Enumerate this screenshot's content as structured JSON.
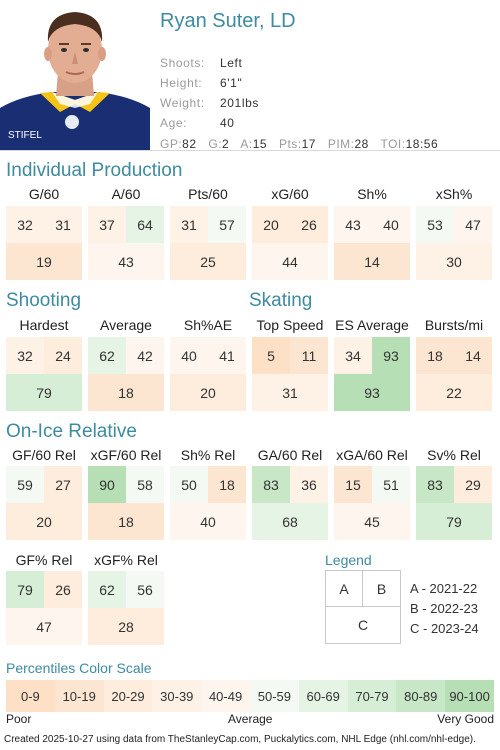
{
  "player": {
    "name": "Ryan Suter, LD",
    "bio": [
      {
        "label": "Shoots:",
        "value": "Left"
      },
      {
        "label": "Height:",
        "value": "6'1\""
      },
      {
        "label": "Weight:",
        "value": "201lbs"
      },
      {
        "label": "Age:",
        "value": "40"
      }
    ],
    "stats": [
      {
        "label": "GP:",
        "value": "82"
      },
      {
        "label": "G:",
        "value": "2"
      },
      {
        "label": "A:",
        "value": "15"
      },
      {
        "label": "Pts:",
        "value": "17"
      },
      {
        "label": "PIM:",
        "value": "28"
      },
      {
        "label": "TOI:",
        "value": "18:56"
      }
    ],
    "jersey_text": "STIFEL"
  },
  "sections": {
    "individual_production": {
      "title": "Individual Production",
      "metrics": [
        {
          "label": "G/60",
          "a": 32,
          "b": 31,
          "c": 19
        },
        {
          "label": "A/60",
          "a": 37,
          "b": 64,
          "c": 43
        },
        {
          "label": "Pts/60",
          "a": 31,
          "b": 57,
          "c": 25
        },
        {
          "label": "xG/60",
          "a": 20,
          "b": 26,
          "c": 44
        },
        {
          "label": "Sh%",
          "a": 43,
          "b": 40,
          "c": 14
        },
        {
          "label": "xSh%",
          "a": 53,
          "b": 47,
          "c": 30
        }
      ]
    },
    "shooting": {
      "title": "Shooting",
      "metrics": [
        {
          "label": "Hardest",
          "a": 32,
          "b": 24,
          "c": 79
        },
        {
          "label": "Average",
          "a": 62,
          "b": 42,
          "c": 18
        },
        {
          "label": "Sh%AE",
          "a": 40,
          "b": 41,
          "c": 20
        }
      ]
    },
    "skating": {
      "title": "Skating",
      "metrics": [
        {
          "label": "Top Speed",
          "a": 5,
          "b": 11,
          "c": 31
        },
        {
          "label": "ES Average",
          "a": 34,
          "b": 93,
          "c": 93
        },
        {
          "label": "Bursts/mi",
          "a": 18,
          "b": 14,
          "c": 22
        }
      ]
    },
    "on_ice_relative": {
      "title": "On-Ice Relative",
      "metrics": [
        {
          "label": "GF/60 Rel",
          "a": 59,
          "b": 27,
          "c": 20
        },
        {
          "label": "xGF/60 Rel",
          "a": 90,
          "b": 58,
          "c": 18
        },
        {
          "label": "Sh% Rel",
          "a": 50,
          "b": 18,
          "c": 40
        },
        {
          "label": "GA/60 Rel",
          "a": 83,
          "b": 36,
          "c": 68
        },
        {
          "label": "xGA/60 Rel",
          "a": 15,
          "b": 51,
          "c": 45
        },
        {
          "label": "Sv% Rel",
          "a": 83,
          "b": 29,
          "c": 79
        }
      ],
      "metrics_row2": [
        {
          "label": "GF% Rel",
          "a": 79,
          "b": 26,
          "c": 47
        },
        {
          "label": "xGF% Rel",
          "a": 62,
          "b": 56,
          "c": 28
        }
      ]
    }
  },
  "legend": {
    "title": "Legend",
    "cell_a": "A",
    "cell_b": "B",
    "cell_c": "C",
    "entries": [
      "A - 2021-22",
      "B - 2022-23",
      "C - 2023-24"
    ]
  },
  "scale": {
    "title": "Percentiles Color Scale",
    "bins": [
      {
        "label": "0-9",
        "color": "#fde0c6"
      },
      {
        "label": "10-19",
        "color": "#fde6d1"
      },
      {
        "label": "20-29",
        "color": "#feecdc"
      },
      {
        "label": "30-39",
        "color": "#fef2e6"
      },
      {
        "label": "40-49",
        "color": "#fef6ee"
      },
      {
        "label": "50-59",
        "color": "#f4faf3"
      },
      {
        "label": "60-69",
        "color": "#e6f4e5"
      },
      {
        "label": "70-79",
        "color": "#d7eed6"
      },
      {
        "label": "80-89",
        "color": "#c7e7c6"
      },
      {
        "label": "90-100",
        "color": "#b6dfb5"
      }
    ],
    "low_label": "Poor",
    "mid_label": "Average",
    "high_label": "Very Good"
  },
  "footer": "Created 2025-10-27 using data from TheStanleyCap.com, Puckalytics.com, NHL Edge (nhl.com/nhl-edge).",
  "colors": {
    "accent": "#3e8ba0",
    "jersey": "#1a2f73",
    "jersey_trim": "#f6c317"
  }
}
